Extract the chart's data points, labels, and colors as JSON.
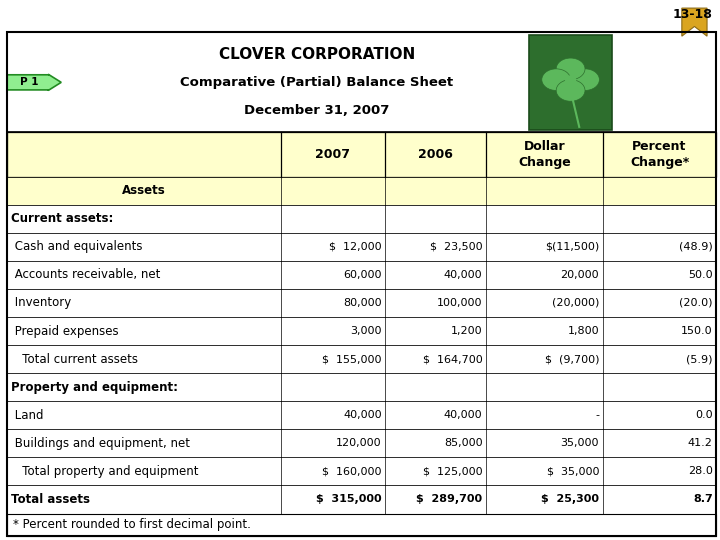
{
  "title1": "CLOVER CORPORATION",
  "title2": "Comparative (Partial) Balance Sheet",
  "title3": "December 31, 2007",
  "rows": [
    {
      "label": "Assets",
      "v2007": "",
      "v2006": "",
      "dollar": "",
      "percent": "",
      "bold": true,
      "center": true,
      "bg": "#ffffcc"
    },
    {
      "label": "Current assets:",
      "v2007": "",
      "v2006": "",
      "dollar": "",
      "percent": "",
      "bold": true,
      "center": false,
      "bg": "#ffffff"
    },
    {
      "label": " Cash and equivalents",
      "v2007": "$  12,000",
      "v2006": "$  23,500",
      "dollar": "$(11,500)",
      "percent": "(48.9)",
      "bold": false,
      "center": false,
      "bg": "#ffffff"
    },
    {
      "label": " Accounts receivable, net",
      "v2007": "60,000",
      "v2006": "40,000",
      "dollar": "20,000",
      "percent": "50.0",
      "bold": false,
      "center": false,
      "bg": "#ffffff"
    },
    {
      "label": " Inventory",
      "v2007": "80,000",
      "v2006": "100,000",
      "dollar": "(20,000)",
      "percent": "(20.0)",
      "bold": false,
      "center": false,
      "bg": "#ffffff"
    },
    {
      "label": " Prepaid expenses",
      "v2007": "3,000",
      "v2006": "1,200",
      "dollar": "1,800",
      "percent": "150.0",
      "bold": false,
      "center": false,
      "bg": "#ffffff"
    },
    {
      "label": "   Total current assets",
      "v2007": "$  155,000",
      "v2006": "$  164,700",
      "dollar": "$  (9,700)",
      "percent": "(5.9)",
      "bold": false,
      "center": false,
      "bg": "#ffffff"
    },
    {
      "label": "Property and equipment:",
      "v2007": "",
      "v2006": "",
      "dollar": "",
      "percent": "",
      "bold": true,
      "center": false,
      "bg": "#ffffff"
    },
    {
      "label": " Land",
      "v2007": "40,000",
      "v2006": "40,000",
      "dollar": "-",
      "percent": "0.0",
      "bold": false,
      "center": false,
      "bg": "#ffffff"
    },
    {
      "label": " Buildings and equipment, net",
      "v2007": "120,000",
      "v2006": "85,000",
      "dollar": "35,000",
      "percent": "41.2",
      "bold": false,
      "center": false,
      "bg": "#ffffff"
    },
    {
      "label": "   Total property and equipment",
      "v2007": "$  160,000",
      "v2006": "$  125,000",
      "dollar": "$  35,000",
      "percent": "28.0",
      "bold": false,
      "center": false,
      "bg": "#ffffff"
    },
    {
      "label": "Total assets",
      "v2007": "$  315,000",
      "v2006": "$  289,700",
      "dollar": "$  25,300",
      "percent": "8.7",
      "bold": true,
      "center": false,
      "bg": "#ffffff"
    }
  ],
  "footer": "* Percent rounded to first decimal point.",
  "header_bg": "#ffffcc",
  "white_bg": "#ffffff",
  "tag_text": "13-18",
  "p1_text": "P 1"
}
